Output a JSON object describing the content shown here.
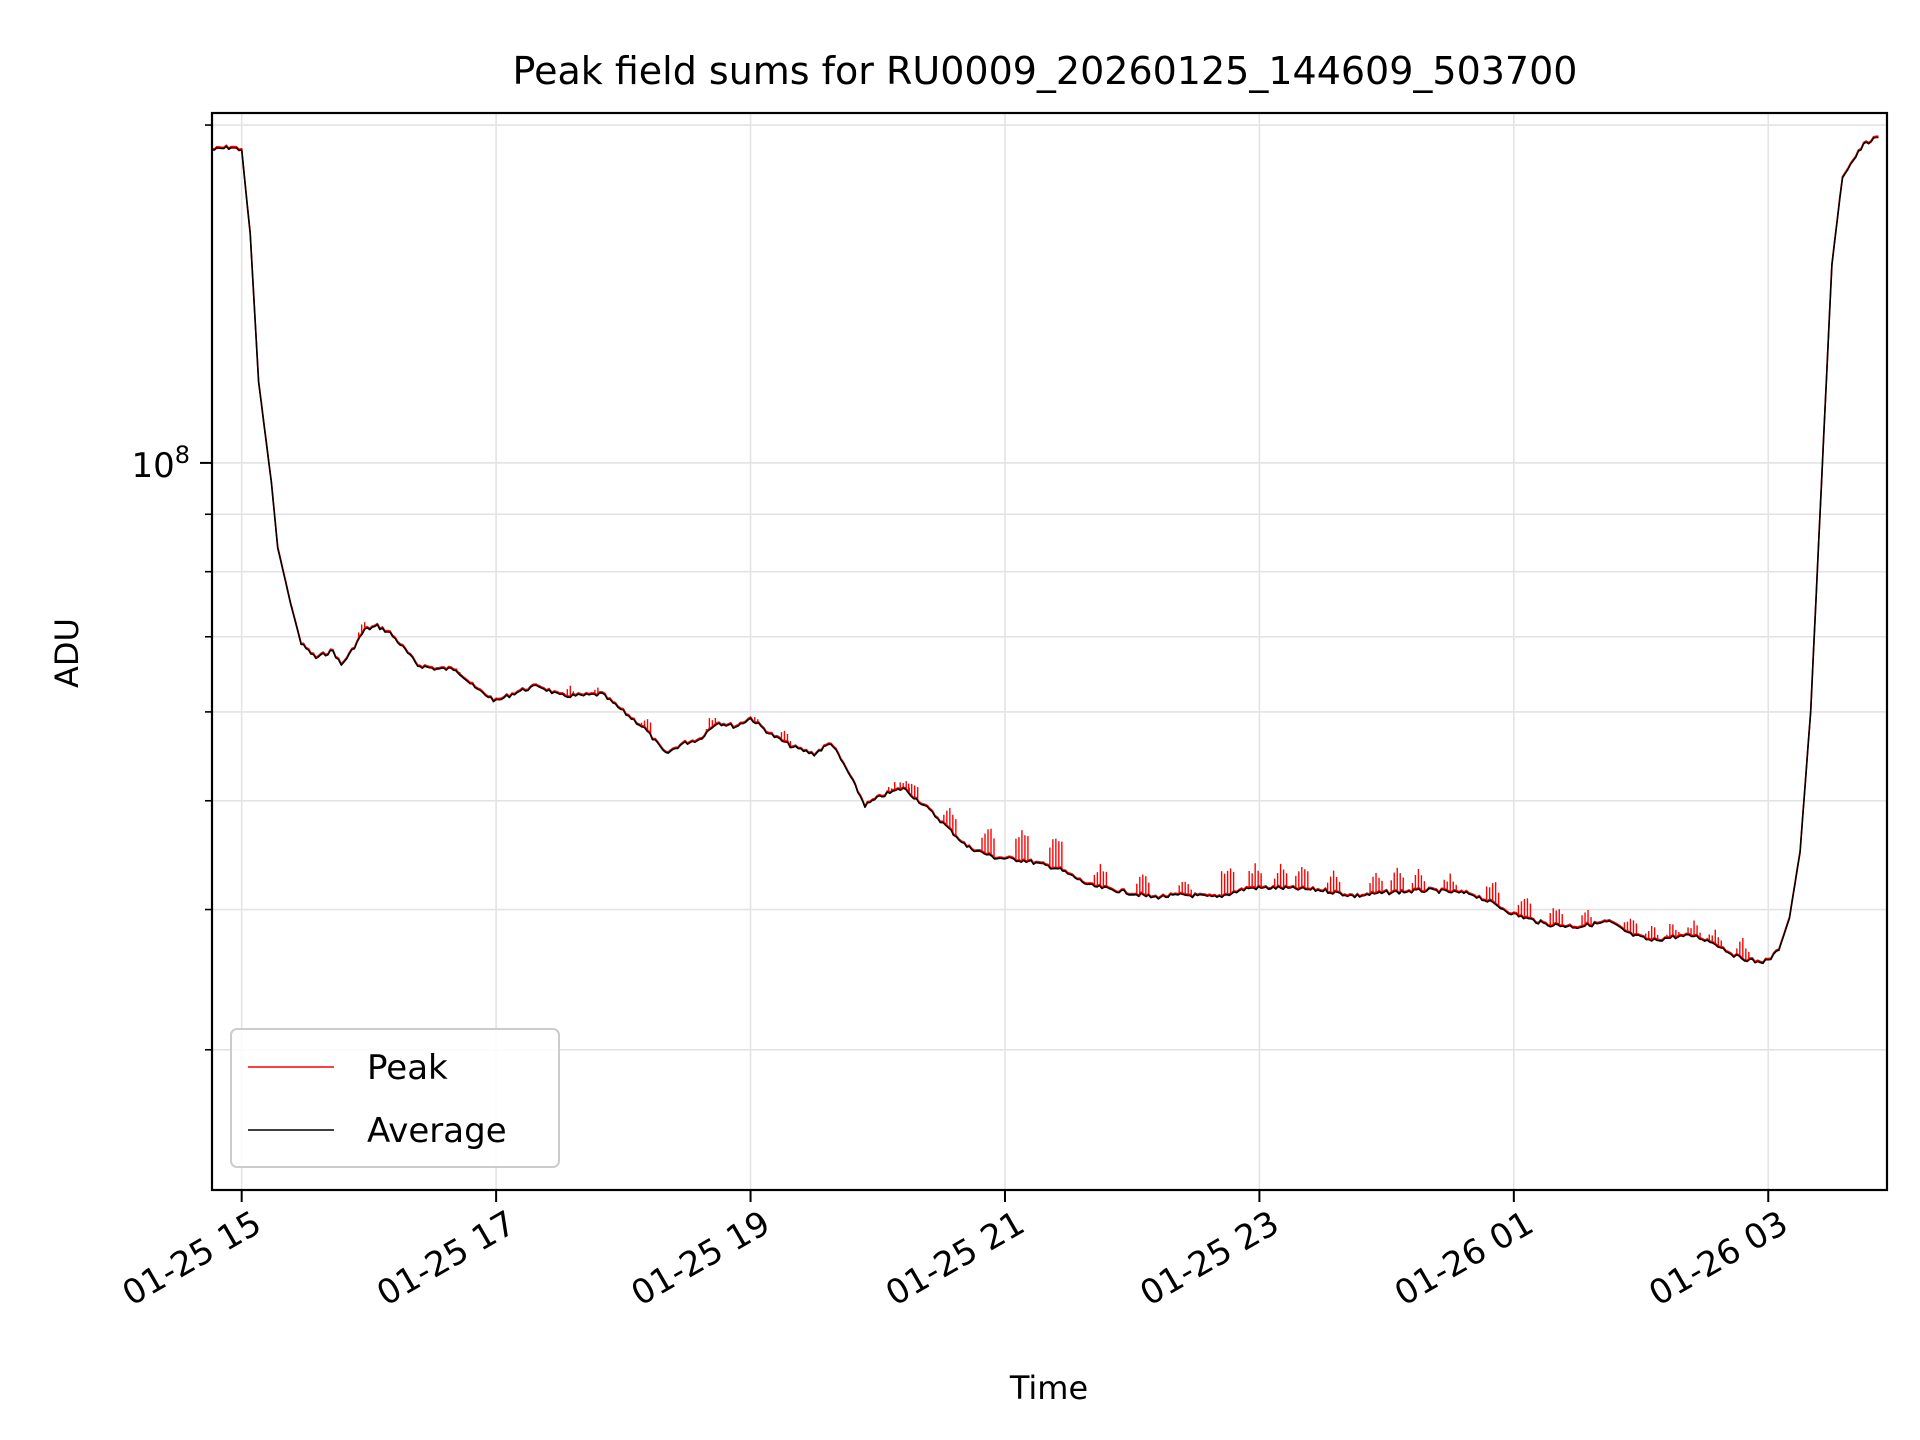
{
  "chart_data": {
    "type": "line",
    "title": "Peak field sums for RU0009_20260125_144609_503700",
    "xlabel": "Time",
    "ylabel": "ADU",
    "y_scale": "log",
    "grid": true,
    "legend_position": "lower-left",
    "xlim": [
      "2026-01-25 14:46",
      "2026-01-26 03:56"
    ],
    "ylim": [
      22500000,
      205000000
    ],
    "x_ticks": [
      {
        "label": "01-25 15",
        "time": "2026-01-25 15:00"
      },
      {
        "label": "01-25 17",
        "time": "2026-01-25 17:00"
      },
      {
        "label": "01-25 19",
        "time": "2026-01-25 19:00"
      },
      {
        "label": "01-25 21",
        "time": "2026-01-25 21:00"
      },
      {
        "label": "01-25 23",
        "time": "2026-01-25 23:00"
      },
      {
        "label": "01-26 01",
        "time": "2026-01-26 01:00"
      },
      {
        "label": "01-26 03",
        "time": "2026-01-26 03:00"
      }
    ],
    "y_major_tick": {
      "value": 100000000,
      "label_base": "10",
      "label_exp": "8"
    },
    "colors": {
      "Peak": "#ff0000",
      "Average": "#000000"
    },
    "series": [
      {
        "name": "Average",
        "color": "#000000",
        "points": [
          [
            "2026-01-25 14:46",
            190000000
          ],
          [
            "2026-01-25 14:55",
            191000000
          ],
          [
            "2026-01-25 15:00",
            190000000
          ],
          [
            "2026-01-25 15:04",
            160000000
          ],
          [
            "2026-01-25 15:08",
            118000000
          ],
          [
            "2026-01-25 15:14",
            96000000
          ],
          [
            "2026-01-25 15:17",
            84000000
          ],
          [
            "2026-01-25 15:23",
            75000000
          ],
          [
            "2026-01-25 15:28",
            69000000
          ],
          [
            "2026-01-25 15:35",
            67000000
          ],
          [
            "2026-01-25 15:43",
            68000000
          ],
          [
            "2026-01-25 15:47",
            66000000
          ],
          [
            "2026-01-25 15:52",
            68000000
          ],
          [
            "2026-01-25 15:58",
            71000000
          ],
          [
            "2026-01-25 16:04",
            71500000
          ],
          [
            "2026-01-25 16:10",
            70500000
          ],
          [
            "2026-01-25 16:16",
            68500000
          ],
          [
            "2026-01-25 16:23",
            66000000
          ],
          [
            "2026-01-25 16:32",
            65500000
          ],
          [
            "2026-01-25 16:41",
            65500000
          ],
          [
            "2026-01-25 16:50",
            63000000
          ],
          [
            "2026-01-25 17:00",
            61300000
          ],
          [
            "2026-01-25 17:10",
            62500000
          ],
          [
            "2026-01-25 17:20",
            63300000
          ],
          [
            "2026-01-25 17:30",
            62000000
          ],
          [
            "2026-01-25 17:40",
            62000000
          ],
          [
            "2026-01-25 17:50",
            62200000
          ],
          [
            "2026-01-25 18:00",
            60000000
          ],
          [
            "2026-01-25 18:10",
            58000000
          ],
          [
            "2026-01-25 18:20",
            55000000
          ],
          [
            "2026-01-25 18:28",
            56200000
          ],
          [
            "2026-01-25 18:36",
            56700000
          ],
          [
            "2026-01-25 18:44",
            58700000
          ],
          [
            "2026-01-25 18:53",
            58200000
          ],
          [
            "2026-01-25 19:00",
            59200000
          ],
          [
            "2026-01-25 19:10",
            57200000
          ],
          [
            "2026-01-25 19:20",
            55800000
          ],
          [
            "2026-01-25 19:30",
            55000000
          ],
          [
            "2026-01-25 19:38",
            56300000
          ],
          [
            "2026-01-25 19:46",
            53000000
          ],
          [
            "2026-01-25 19:54",
            49500000
          ],
          [
            "2026-01-25 20:02",
            50500000
          ],
          [
            "2026-01-25 20:12",
            51300000
          ],
          [
            "2026-01-25 20:22",
            49500000
          ],
          [
            "2026-01-25 20:32",
            47500000
          ],
          [
            "2026-01-25 20:42",
            45500000
          ],
          [
            "2026-01-25 20:55",
            44500000
          ],
          [
            "2026-01-25 21:10",
            44200000
          ],
          [
            "2026-01-25 21:25",
            43500000
          ],
          [
            "2026-01-25 21:40",
            42000000
          ],
          [
            "2026-01-25 21:55",
            41500000
          ],
          [
            "2026-01-25 22:10",
            41000000
          ],
          [
            "2026-01-25 22:25",
            41200000
          ],
          [
            "2026-01-25 22:40",
            41000000
          ],
          [
            "2026-01-25 22:55",
            41800000
          ],
          [
            "2026-01-25 23:10",
            41800000
          ],
          [
            "2026-01-25 23:30",
            41600000
          ],
          [
            "2026-01-25 23:45",
            41100000
          ],
          [
            "2026-01-26 00:00",
            41400000
          ],
          [
            "2026-01-26 00:20",
            41600000
          ],
          [
            "2026-01-26 00:40",
            41300000
          ],
          [
            "2026-01-26 00:50",
            40500000
          ],
          [
            "2026-01-26 01:00",
            39600000
          ],
          [
            "2026-01-26 01:15",
            38800000
          ],
          [
            "2026-01-26 01:30",
            38600000
          ],
          [
            "2026-01-26 01:45",
            39000000
          ],
          [
            "2026-01-26 01:55",
            38000000
          ],
          [
            "2026-01-26 02:05",
            37500000
          ],
          [
            "2026-01-26 02:15",
            37800000
          ],
          [
            "2026-01-26 02:25",
            37900000
          ],
          [
            "2026-01-26 02:35",
            37300000
          ],
          [
            "2026-01-26 02:45",
            36300000
          ],
          [
            "2026-01-26 02:55",
            35900000
          ],
          [
            "2026-01-26 03:00",
            36000000
          ],
          [
            "2026-01-26 03:05",
            36800000
          ],
          [
            "2026-01-26 03:10",
            39300000
          ],
          [
            "2026-01-26 03:15",
            45000000
          ],
          [
            "2026-01-26 03:20",
            60000000
          ],
          [
            "2026-01-26 03:25",
            95000000
          ],
          [
            "2026-01-26 03:30",
            150000000
          ],
          [
            "2026-01-26 03:35",
            180000000
          ],
          [
            "2026-01-26 03:45",
            192000000
          ],
          [
            "2026-01-26 03:52",
            195000000
          ]
        ]
      },
      {
        "name": "Peak",
        "color": "#ff0000",
        "spikes": [
          [
            "2026-01-25 15:58",
            72500000
          ],
          [
            "2026-01-25 16:40",
            66500000
          ],
          [
            "2026-01-25 17:35",
            63500000
          ],
          [
            "2026-01-25 17:48",
            63300000
          ],
          [
            "2026-01-25 18:10",
            59800000
          ],
          [
            "2026-01-25 18:42",
            59800000
          ],
          [
            "2026-01-25 19:02",
            60000000
          ],
          [
            "2026-01-25 19:16",
            58200000
          ],
          [
            "2026-01-25 19:40",
            55300000
          ],
          [
            "2026-01-25 20:08",
            52500000
          ],
          [
            "2026-01-25 20:12",
            52500000
          ],
          [
            "2026-01-25 20:16",
            52500000
          ],
          [
            "2026-01-25 20:34",
            49500000
          ],
          [
            "2026-01-25 20:52",
            47700000
          ],
          [
            "2026-01-25 21:08",
            47400000
          ],
          [
            "2026-01-25 21:24",
            46800000
          ],
          [
            "2026-01-25 21:45",
            44200000
          ],
          [
            "2026-01-25 22:05",
            43300000
          ],
          [
            "2026-01-25 22:25",
            43000000
          ],
          [
            "2026-01-25 22:45",
            44000000
          ],
          [
            "2026-01-25 22:58",
            44000000
          ],
          [
            "2026-01-25 23:10",
            44000000
          ],
          [
            "2026-01-25 23:20",
            44000000
          ],
          [
            "2026-01-25 23:35",
            43500000
          ],
          [
            "2026-01-25 23:55",
            43300000
          ],
          [
            "2026-01-26 00:05",
            43600000
          ],
          [
            "2026-01-26 00:15",
            43600000
          ],
          [
            "2026-01-26 00:30",
            43400000
          ],
          [
            "2026-01-26 00:50",
            42700000
          ],
          [
            "2026-01-26 01:05",
            41500000
          ],
          [
            "2026-01-26 01:20",
            40500000
          ],
          [
            "2026-01-26 01:35",
            40300000
          ],
          [
            "2026-01-26 01:55",
            39600000
          ],
          [
            "2026-01-26 02:05",
            39000000
          ],
          [
            "2026-01-26 02:15",
            39200000
          ],
          [
            "2026-01-26 02:25",
            39200000
          ],
          [
            "2026-01-26 02:35",
            38700000
          ],
          [
            "2026-01-26 02:48",
            37800000
          ],
          [
            "2026-01-26 03:00",
            36600000
          ]
        ]
      }
    ],
    "legend": [
      {
        "name": "Peak",
        "color": "#ff0000"
      },
      {
        "name": "Average",
        "color": "#000000"
      }
    ]
  }
}
